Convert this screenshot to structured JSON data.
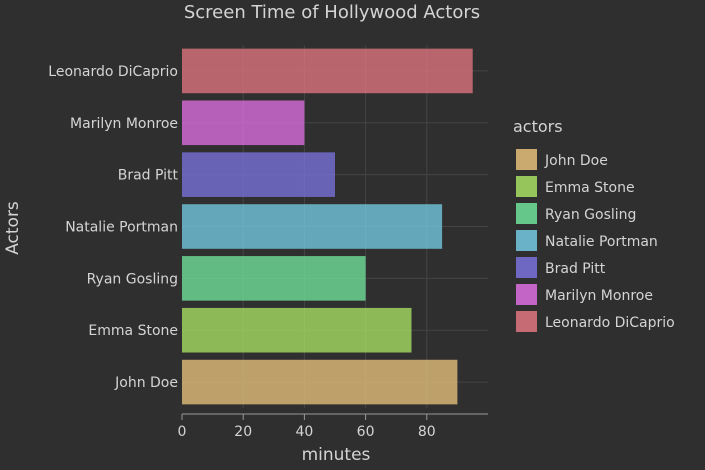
{
  "chart_data": {
    "type": "bar",
    "orientation": "horizontal",
    "title": "Screen Time of Hollywood Actors",
    "xlabel": "minutes",
    "ylabel": "Actors",
    "xlim": [
      0,
      100
    ],
    "xticks": [
      0,
      20,
      40,
      60,
      80
    ],
    "grid": true,
    "legend": {
      "title": "actors",
      "placement": "right"
    },
    "series": [
      {
        "name": "John Doe",
        "category": "John Doe",
        "value": 90,
        "color": "#e6c07b"
      },
      {
        "name": "Emma Stone",
        "category": "Emma Stone",
        "value": 75,
        "color": "#a8e063"
      },
      {
        "name": "Ryan Gosling",
        "category": "Ryan Gosling",
        "value": 60,
        "color": "#6fe39a"
      },
      {
        "name": "Natalie Portman",
        "category": "Natalie Portman",
        "value": 85,
        "color": "#74c9e2"
      },
      {
        "name": "Brad Pitt",
        "category": "Brad Pitt",
        "value": 50,
        "color": "#7a72dd"
      },
      {
        "name": "Marilyn Monroe",
        "category": "Marilyn Monroe",
        "value": 40,
        "color": "#dd6ee0"
      },
      {
        "name": "Leonardo DiCaprio",
        "category": "Leonardo DiCaprio",
        "value": 95,
        "color": "#e07480"
      }
    ]
  },
  "colors": {
    "background": "#2f2f2f",
    "grid": "#454545",
    "text": "#d4d4d4",
    "axis": "#9a9a9a"
  }
}
